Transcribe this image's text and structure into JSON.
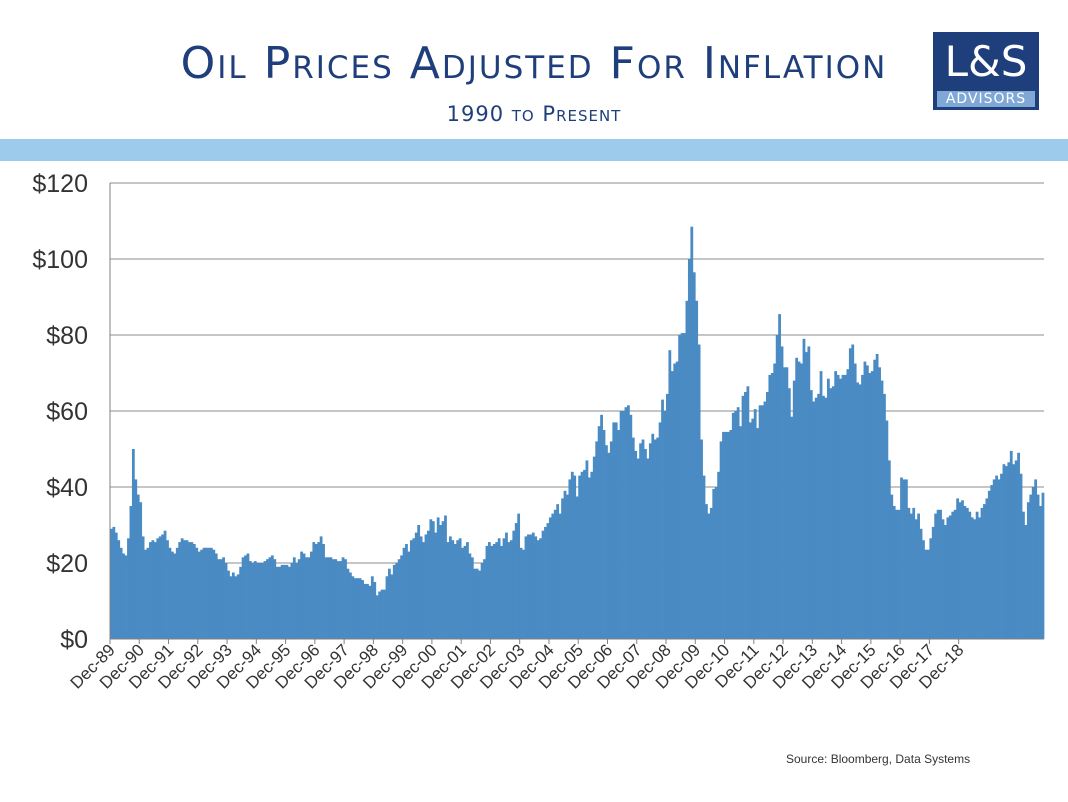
{
  "header": {
    "title": "Oil Prices Adjusted For Inflation",
    "subtitle": "1990 to Present"
  },
  "logo": {
    "main": "L&S",
    "sub": "ADVISORS"
  },
  "colors": {
    "title": "#1f3e7c",
    "band": "#9ccbeb",
    "bars": "#4a8bc4",
    "logo_bg": "#1f3e7c",
    "logo_sub_bg": "#7fa8d6"
  },
  "source": "Source:  Bloomberg, Data Systems",
  "chart_data": {
    "type": "bar",
    "ylim": [
      0,
      120
    ],
    "yticks": [
      0,
      20,
      40,
      60,
      80,
      100,
      120
    ],
    "ytick_labels": [
      "$0",
      "$20",
      "$40",
      "$60",
      "$80",
      "$100",
      "$120"
    ],
    "grid": true,
    "xtick_labels": [
      "Dec-89",
      "Dec-90",
      "Dec-91",
      "Dec-92",
      "Dec-93",
      "Dec-94",
      "Dec-95",
      "Dec-96",
      "Dec-97",
      "Dec-98",
      "Dec-99",
      "Dec-00",
      "Dec-01",
      "Dec-02",
      "Dec-03",
      "Dec-04",
      "Dec-05",
      "Dec-06",
      "Dec-07",
      "Dec-08",
      "Dec-09",
      "Dec-10",
      "Dec-11",
      "Dec-12",
      "Dec-13",
      "Dec-14",
      "Dec-15",
      "Dec-16",
      "Dec-17",
      "Dec-18"
    ],
    "values": [
      29,
      29.5,
      28,
      26,
      24,
      22.5,
      22,
      26.5,
      35,
      50,
      42,
      38,
      36,
      27,
      23.5,
      24,
      25.5,
      26,
      25.5,
      26.5,
      27,
      27.5,
      28.5,
      26,
      24,
      23,
      22.5,
      24,
      25.5,
      26.5,
      26,
      26,
      25.5,
      25.5,
      25,
      24,
      23,
      23.5,
      24,
      24,
      24,
      24,
      23.5,
      22.5,
      21,
      21,
      21.5,
      20,
      18,
      16.5,
      17.5,
      16.5,
      17,
      19,
      21.5,
      22,
      22.5,
      20.5,
      20,
      20.5,
      20,
      20,
      20,
      20.5,
      21,
      21.5,
      22,
      21,
      19,
      19,
      19.5,
      19.5,
      19.5,
      19,
      20,
      21.5,
      20,
      21,
      23,
      22.5,
      21.5,
      21.5,
      23,
      25.5,
      25,
      25.5,
      27,
      25,
      21.5,
      21.5,
      21.5,
      21,
      21,
      20.5,
      20.5,
      21.5,
      21,
      18.5,
      17.5,
      16.5,
      16,
      16,
      16,
      15.5,
      14.5,
      14.5,
      14,
      16.5,
      15,
      11.5,
      12.5,
      13,
      13,
      16.5,
      18.5,
      17,
      19.5,
      20,
      21,
      22,
      24,
      25,
      23,
      26,
      26.5,
      28,
      30,
      27,
      25.5,
      27.5,
      28.5,
      31.5,
      31,
      28,
      32,
      30,
      31,
      32.5,
      25.5,
      27,
      26,
      25,
      26,
      26.5,
      24,
      24.5,
      25.5,
      22.5,
      21.5,
      18.5,
      18.5,
      18,
      20,
      21,
      24.5,
      25.5,
      24.5,
      25,
      25.5,
      26.5,
      24.5,
      26.5,
      28,
      25.5,
      26,
      28.5,
      30.5,
      33,
      24,
      23.5,
      27,
      27.5,
      27.5,
      28,
      27,
      26,
      26.5,
      28.5,
      29.5,
      30.5,
      32,
      33,
      34,
      35.5,
      33,
      37,
      39,
      38,
      42,
      44,
      43,
      37.5,
      43,
      44,
      44.5,
      47,
      42.5,
      44,
      48,
      52,
      56,
      59,
      55,
      51,
      49,
      52,
      57,
      57,
      55,
      60,
      60,
      61,
      61.5,
      59,
      53,
      49.5,
      47.5,
      51.5,
      52.5,
      50,
      47.5,
      51.5,
      54,
      52.5,
      53,
      57,
      63,
      60,
      64.5,
      76,
      70.5,
      72.5,
      73,
      80,
      80.5,
      80.5,
      89,
      100,
      108.5,
      96.5,
      89,
      77.5,
      52.5,
      43,
      35.5,
      33,
      34.5,
      39.5,
      40,
      44,
      52,
      54.5,
      54.5,
      54.5,
      55,
      59.5,
      60,
      61,
      56,
      64,
      65,
      66.5,
      57,
      58,
      60.5,
      55.5,
      61.5,
      61.5,
      62.5,
      65,
      69.5,
      70,
      72.5,
      80,
      85.5,
      77,
      71.5,
      71.5,
      66,
      58.5,
      68,
      74,
      73,
      72.5,
      79,
      75.5,
      77,
      65.5,
      62.5,
      63.5,
      64.5,
      70.5,
      64,
      63.5,
      68.5,
      66,
      66.5,
      70.5,
      69.5,
      68.5,
      69.5,
      69.5,
      71,
      76.5,
      77.5,
      72.5,
      67.5,
      67,
      69.5,
      73,
      72,
      70,
      70.5,
      73.5,
      75,
      71.5,
      68,
      64.5,
      57.5,
      47,
      38,
      35,
      34,
      34,
      42.5,
      42,
      42,
      34.5,
      33,
      34.5,
      31.5,
      33,
      29,
      26,
      23.5,
      23.5,
      26.5,
      29.5,
      33,
      34,
      34,
      31.5,
      30,
      32,
      32.5,
      33.5,
      34,
      37,
      36,
      36.5,
      35,
      34.5,
      33.5,
      32,
      31.5,
      33.5,
      32,
      34.5,
      35.5,
      37,
      39,
      40.5,
      42,
      43,
      42,
      43.5,
      46,
      45.5,
      46.5,
      49.5,
      46,
      47,
      49,
      43.5,
      33.5,
      30,
      36,
      38,
      40,
      42,
      38,
      35,
      38.5
    ]
  }
}
